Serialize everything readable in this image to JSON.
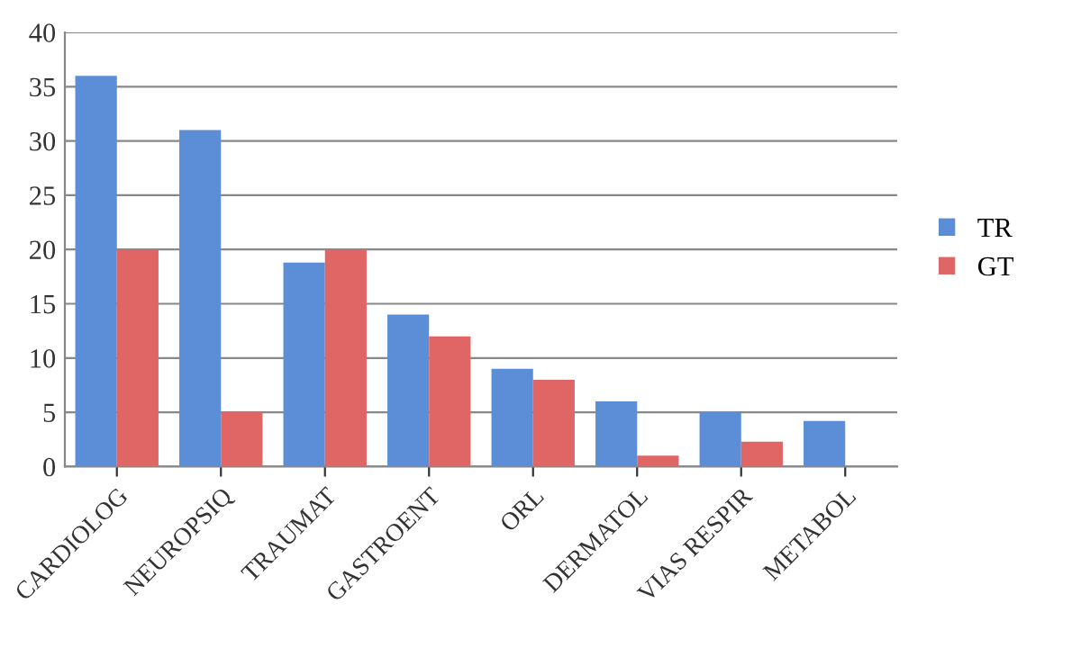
{
  "chart_data": {
    "type": "bar",
    "categories": [
      "CARDIOLOG",
      "NEUROPSIQ",
      "TRAUMAT",
      "GASTROENT",
      "ORL",
      "DERMATOL",
      "VIAS RESPIR",
      "METABOL"
    ],
    "series": [
      {
        "name": "TR",
        "color": "#5b8ed6",
        "values": [
          36,
          31,
          18.8,
          14,
          9,
          6,
          5,
          4.2
        ]
      },
      {
        "name": "GT",
        "color": "#e06666",
        "values": [
          20,
          5,
          20,
          12,
          8,
          1,
          2.3,
          null
        ]
      }
    ],
    "ylim": [
      0,
      40
    ],
    "yticks": [
      0,
      5,
      10,
      15,
      20,
      25,
      30,
      35,
      40
    ],
    "grid": "y",
    "legend": "right"
  }
}
